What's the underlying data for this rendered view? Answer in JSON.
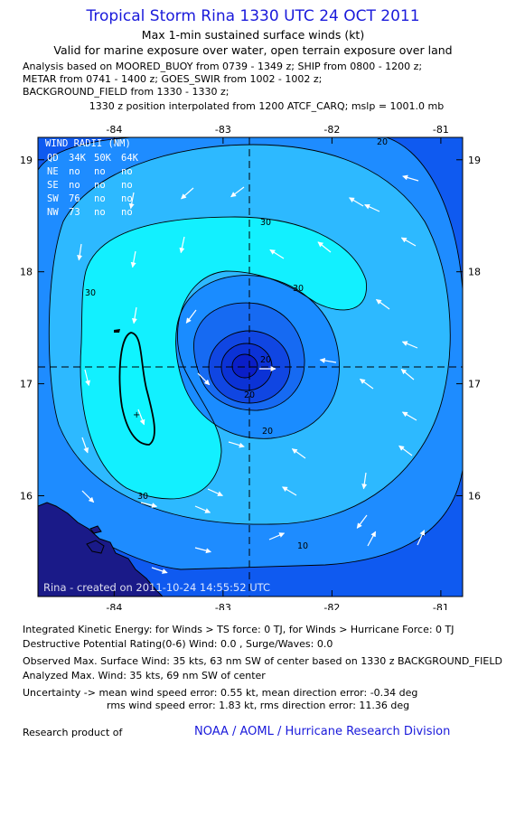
{
  "header": {
    "title": "Tropical Storm Rina 1330 UTC 24 OCT 2011",
    "subtitle1": "Max 1-min sustained surface winds (kt)",
    "subtitle2": "Valid for marine exposure over water, open terrain exposure over land",
    "analysis_lines": [
      "Analysis based on MOORED_BUOY from 0739 - 1349 z; SHIP from 0800 - 1200 z;",
      "METAR from 0741 - 1400 z; GOES_SWIR from 1002 - 1002 z;",
      "BACKGROUND_FIELD from 1330 - 1330 z;"
    ],
    "interp_line": "1330 z position interpolated from 1200 ATCF_CARQ; mslp = 1001.0 mb"
  },
  "map": {
    "lon_ticks": [
      "-84",
      "-83",
      "-82",
      "-81"
    ],
    "lat_ticks": [
      "19",
      "18",
      "17",
      "16"
    ],
    "lon_range": [
      -84.7,
      -80.8
    ],
    "lat_range": [
      15.1,
      19.2
    ],
    "center": {
      "lon": -82.7,
      "lat": 17.1
    },
    "contour_labels": [
      "30",
      "30",
      "30",
      "30",
      "20",
      "20",
      "20",
      "20",
      "10"
    ],
    "wind_radii": {
      "title": "WIND RADII (NM)",
      "header": [
        "QD",
        "34K",
        "50K",
        "64K"
      ],
      "rows": [
        [
          "NE",
          "no",
          "no",
          "no"
        ],
        [
          "SE",
          "no",
          "no",
          "no"
        ],
        [
          "SW",
          "76",
          "no",
          "no"
        ],
        [
          "NW",
          "73",
          "no",
          "no"
        ]
      ]
    },
    "created_label": "Rina - created on 2011-10-24 14:55:52 UTC",
    "colors": {
      "land": "#1a1a88",
      "level_1": "#0f5af0",
      "level_2": "#1e8cff",
      "level_3": "#2db9ff",
      "level_4": "#12f0ff",
      "level_5": "#1a8cff",
      "level_6": "#166af2",
      "level_7": "#1046e2",
      "level_8": "#0a1ec8"
    }
  },
  "footer": {
    "ike": "Integrated Kinetic Energy:  for Winds > TS force: 0 TJ,  for Winds > Hurricane Force: 0 TJ",
    "dpr": "Destructive Potential Rating(0-6)   Wind: 0.0 , Surge/Waves: 0.0",
    "observed": "Observed Max. Surface Wind: 35 kts, 63 nm SW of center based on 1330 z BACKGROUND_FIELD",
    "analyzed": "Analyzed Max. Wind: 35 kts, 69 nm SW of center",
    "uncert1": "Uncertainty -> mean wind speed error: 0.55 kt,   mean direction error:  -0.34 deg",
    "uncert2": "rms wind speed error: 1.83 kt,   rms direction error: 11.36 deg",
    "research": "Research product of",
    "org": "NOAA / AOML / Hurricane Research Division"
  }
}
